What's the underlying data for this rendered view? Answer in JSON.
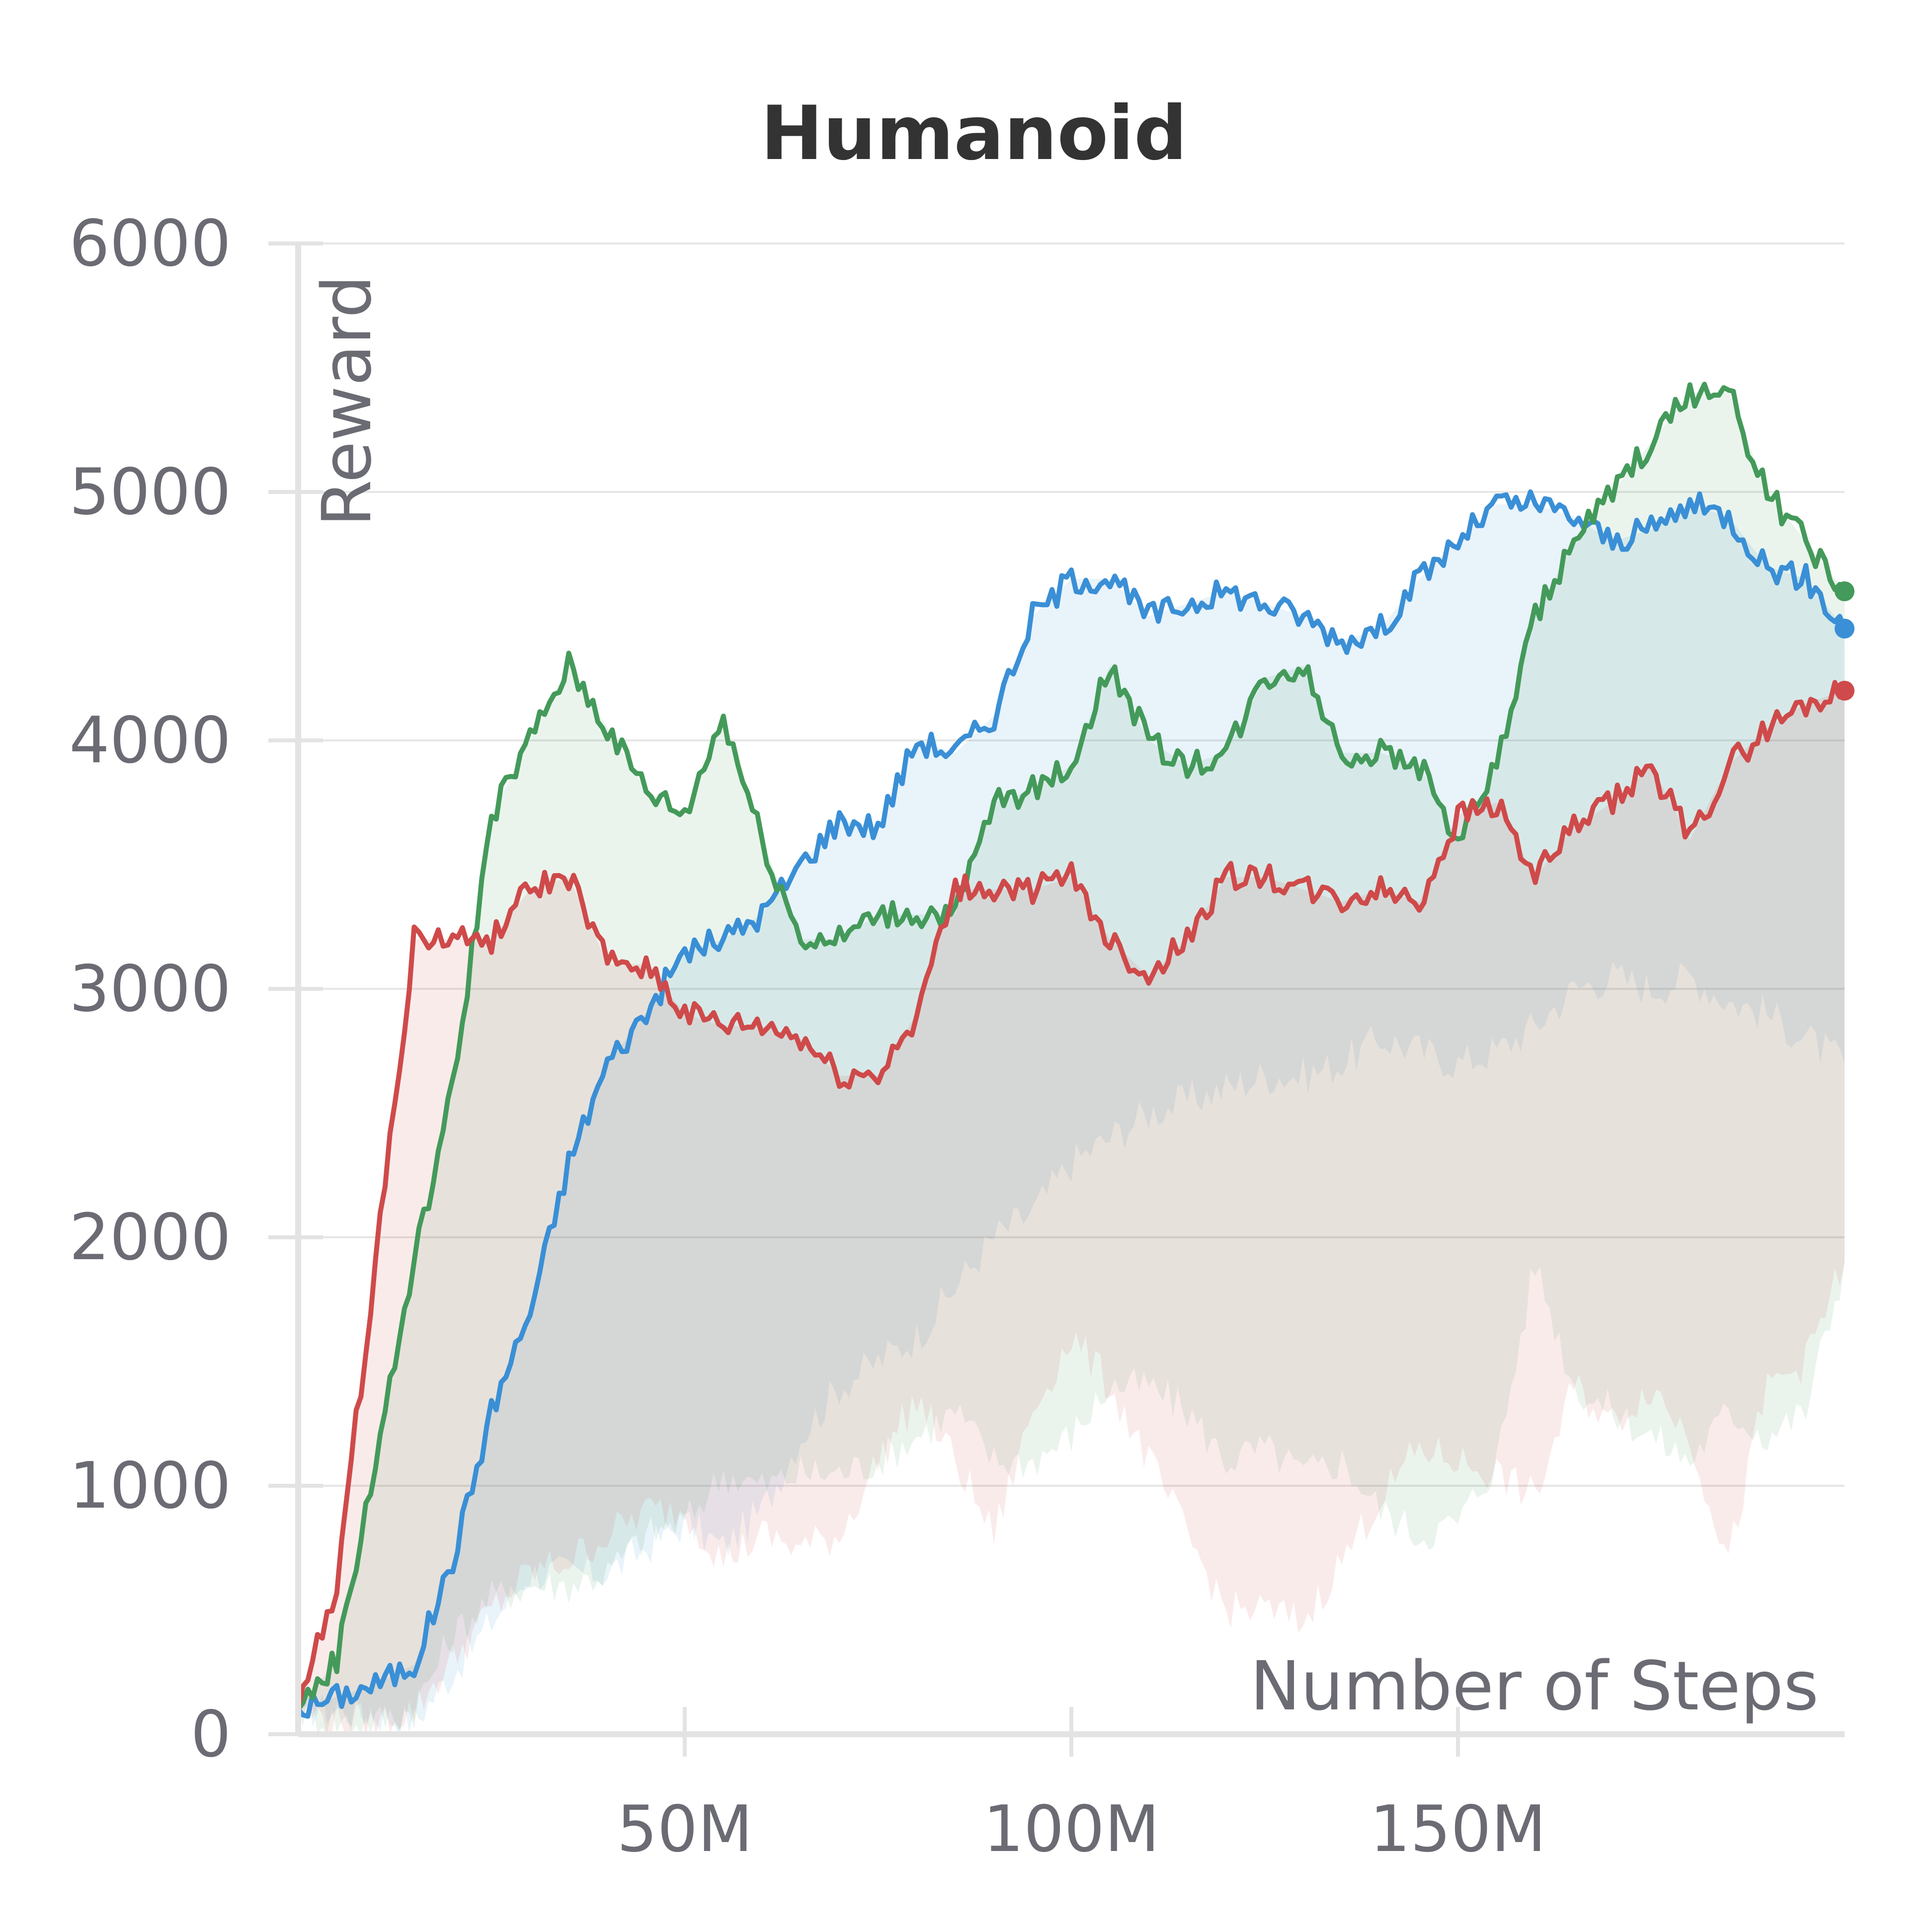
{
  "chart_data": {
    "type": "line",
    "title": "Humanoid",
    "xlabel": "Number of Steps",
    "ylabel": "Reward",
    "xlim": [
      0,
      200
    ],
    "ylim": [
      0,
      6000
    ],
    "x_ticks": [
      {
        "value": 50,
        "label": "50M"
      },
      {
        "value": 100,
        "label": "100M"
      },
      {
        "value": 150,
        "label": "150M"
      }
    ],
    "y_ticks": [
      {
        "value": 0,
        "label": "0"
      },
      {
        "value": 1000,
        "label": "1000"
      },
      {
        "value": 2000,
        "label": "2000"
      },
      {
        "value": 3000,
        "label": "3000"
      },
      {
        "value": 4000,
        "label": "4000"
      },
      {
        "value": 5000,
        "label": "5000"
      },
      {
        "value": 6000,
        "label": "6000"
      }
    ],
    "grid": true,
    "legend": "none",
    "x": [
      0,
      5,
      10,
      15,
      20,
      25,
      30,
      35,
      40,
      45,
      50,
      55,
      60,
      65,
      70,
      75,
      80,
      85,
      90,
      95,
      100,
      105,
      110,
      115,
      120,
      125,
      130,
      135,
      140,
      145,
      150,
      155,
      160,
      165,
      170,
      175,
      180,
      185,
      190,
      195,
      200
    ],
    "series": [
      {
        "color": "#3a8fd6",
        "values": [
          100,
          150,
          200,
          280,
          700,
          1300,
          1700,
          2300,
          2700,
          2900,
          3150,
          3200,
          3300,
          3500,
          3680,
          3650,
          4000,
          3950,
          4100,
          4500,
          4650,
          4650,
          4500,
          4550,
          4600,
          4550,
          4500,
          4400,
          4450,
          4650,
          4800,
          4950,
          4950,
          4900,
          4800,
          4850,
          4950,
          4900,
          4700,
          4650,
          4450
        ],
        "band": [
          [
            100,
            100,
            80,
            50,
            250,
            450,
            650,
            650,
            650,
            750,
            850,
            750,
            900,
            1200,
            1400,
            1500,
            1600,
            1800,
            2000,
            2100,
            2300,
            2400,
            2500,
            2550,
            2600,
            2650,
            2650,
            2700,
            2800,
            2750,
            2700,
            2750,
            2850,
            3000,
            3050,
            3000,
            3050,
            2950,
            2900,
            2800,
            2700
          ],
          [
            100,
            150,
            200,
            280,
            700,
            1300,
            1700,
            2300,
            2700,
            2900,
            3150,
            3200,
            3300,
            3500,
            3680,
            3650,
            4000,
            3950,
            4100,
            4500,
            4650,
            4650,
            4500,
            4550,
            4600,
            4550,
            4500,
            4400,
            4450,
            4650,
            4800,
            4950,
            4950,
            4900,
            4800,
            4850,
            4950,
            4900,
            4700,
            4650,
            4450
          ]
        ]
      },
      {
        "color": "#449a5a",
        "values": [
          100,
          300,
          1100,
          1900,
          2600,
          3700,
          4000,
          4300,
          4050,
          3800,
          3700,
          4100,
          3600,
          3200,
          3200,
          3300,
          3300,
          3300,
          3750,
          3800,
          3900,
          4300,
          4000,
          3900,
          3950,
          4250,
          4300,
          3950,
          3950,
          3900,
          3600,
          3900,
          4500,
          4800,
          5000,
          5200,
          5400,
          5400,
          5000,
          4800,
          4600
        ],
        "band": [
          [
            100,
            50,
            50,
            100,
            400,
            550,
            600,
            600,
            650,
            800,
            850,
            1050,
            1000,
            1050,
            1050,
            1100,
            1200,
            1300,
            1100,
            1100,
            1200,
            1400,
            1400,
            1300,
            1100,
            1150,
            1050,
            1100,
            900,
            800,
            850,
            1100,
            1900,
            1400,
            1300,
            1200,
            1100,
            1300,
            1200,
            1300,
            1900
          ],
          [
            100,
            300,
            1100,
            1900,
            2600,
            3700,
            4000,
            4300,
            4050,
            3800,
            3700,
            4100,
            3600,
            3200,
            3200,
            3300,
            3300,
            3300,
            3750,
            3800,
            3900,
            4300,
            4000,
            3900,
            3950,
            4250,
            4300,
            3950,
            3950,
            3900,
            3600,
            3900,
            4500,
            4800,
            5000,
            5200,
            5400,
            5400,
            5000,
            4800,
            4600
          ]
        ]
      },
      {
        "color": "#cf4a4a",
        "values": [
          100,
          600,
          1900,
          3200,
          3200,
          3200,
          3400,
          3450,
          3100,
          3100,
          2900,
          2850,
          2850,
          2800,
          2650,
          2650,
          2900,
          3400,
          3400,
          3400,
          3450,
          3200,
          3050,
          3200,
          3450,
          3450,
          3400,
          3350,
          3400,
          3350,
          3700,
          3750,
          3450,
          3650,
          3750,
          3900,
          3600,
          3900,
          4050,
          4150,
          4200
        ],
        "band": [
          [
            100,
            50,
            50,
            100,
            300,
            500,
            650,
            700,
            800,
            900,
            900,
            700,
            800,
            750,
            800,
            1100,
            1350,
            1100,
            800,
            1300,
            1600,
            1400,
            1100,
            800,
            500,
            500,
            450,
            700,
            950,
            1150,
            1100,
            1050,
            950,
            1400,
            1250,
            1400,
            1200,
            700,
            1400,
            1500,
            1900
          ],
          [
            100,
            600,
            1900,
            3200,
            3200,
            3200,
            3400,
            3450,
            3100,
            3100,
            2900,
            2850,
            2850,
            2800,
            2650,
            2650,
            2900,
            3400,
            3400,
            3400,
            3450,
            3200,
            3050,
            3200,
            3450,
            3450,
            3400,
            3350,
            3400,
            3350,
            3700,
            3750,
            3450,
            3650,
            3750,
            3900,
            3600,
            3900,
            4050,
            4150,
            4200
          ]
        ]
      }
    ]
  }
}
